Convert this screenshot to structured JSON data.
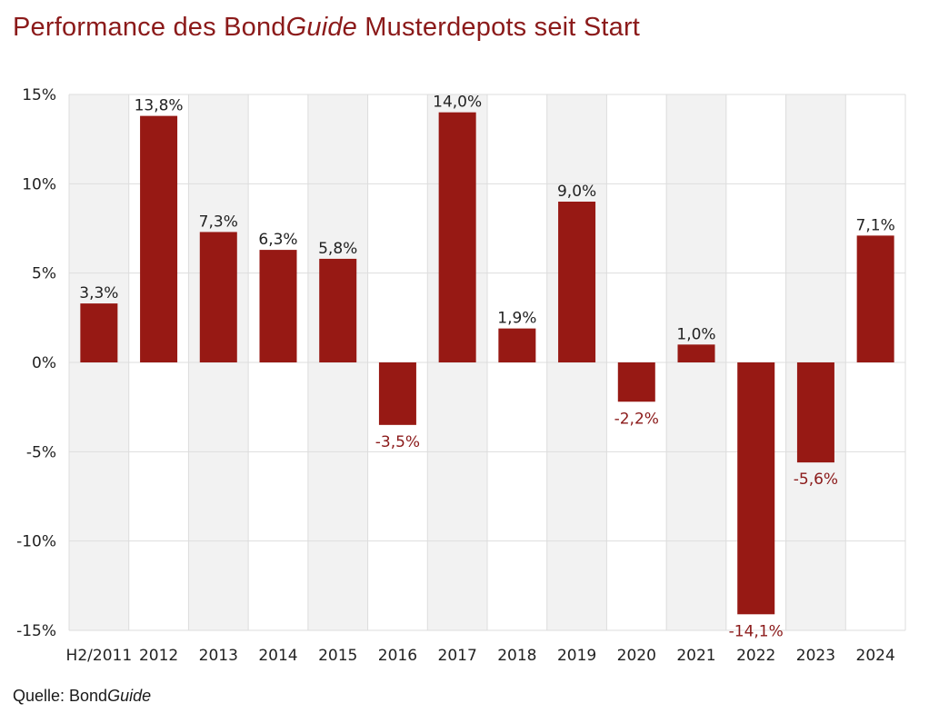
{
  "title": {
    "prefix": "Performance des Bond",
    "italic": "Guide",
    "suffix": " Musterdepots seit Start"
  },
  "source": {
    "prefix": "Quelle: Bond",
    "italic": "Guide"
  },
  "colors": {
    "bar": "#971914",
    "negative_label": "#8b1a1a",
    "positive_label": "#222222",
    "band": "#f2f2f2",
    "grid": "#dddddd"
  },
  "chart_data": {
    "type": "bar",
    "categories": [
      "H2/2011",
      "2012",
      "2013",
      "2014",
      "2015",
      "2016",
      "2017",
      "2018",
      "2019",
      "2020",
      "2021",
      "2022",
      "2023",
      "2024"
    ],
    "values": [
      3.3,
      13.8,
      7.3,
      6.3,
      5.8,
      -3.5,
      14.0,
      1.9,
      9.0,
      -2.2,
      1.0,
      -14.1,
      -5.6,
      7.1
    ],
    "data_labels": [
      "3,3%",
      "13,8%",
      "7,3%",
      "6,3%",
      "5,8%",
      "-3,5%",
      "14,0%",
      "1,9%",
      "9,0%",
      "-2,2%",
      "1,0%",
      "-14,1%",
      "-5,6%",
      "7,1%"
    ],
    "yticks": [
      15,
      10,
      5,
      0,
      -5,
      -10,
      -15
    ],
    "ytick_labels": [
      "15%",
      "10%",
      "5%",
      "0%",
      "-5%",
      "-10%",
      "-15%"
    ],
    "ylim": [
      -15,
      15
    ],
    "grid": true,
    "alternating_bands": true
  }
}
